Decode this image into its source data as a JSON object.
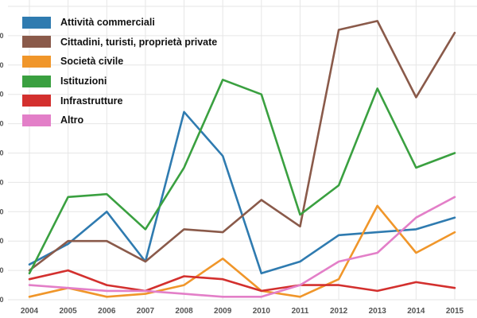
{
  "chart_data": {
    "type": "line",
    "x": [
      2004,
      2005,
      2006,
      2007,
      2008,
      2009,
      2010,
      2011,
      2012,
      2013,
      2014,
      2015
    ],
    "x_tick_labels": [
      "2004",
      "2005",
      "2006",
      "2007",
      "2008",
      "2009",
      "2010",
      "2011",
      "2012",
      "2013",
      "2014",
      "2015"
    ],
    "y_tick_labels": [
      "0",
      "0",
      "0",
      "0",
      "0",
      "0",
      "0",
      "0",
      "0",
      "0"
    ],
    "ylim": [
      0,
      10
    ],
    "grid": true,
    "legend_position": "top-left",
    "series": [
      {
        "name": "Attività commerciali",
        "color": "#2f7bb0",
        "values": [
          1.2,
          1.9,
          3.0,
          1.3,
          6.4,
          4.9,
          0.9,
          1.3,
          2.2,
          2.3,
          2.4,
          2.8
        ]
      },
      {
        "name": "Cittadini, turisti, proprietà private",
        "color": "#8a5a4a",
        "values": [
          1.0,
          2.0,
          2.0,
          1.3,
          2.4,
          2.3,
          3.4,
          2.5,
          9.2,
          9.5,
          6.9,
          9.1
        ]
      },
      {
        "name": "Società civile",
        "color": "#f0962a",
        "values": [
          0.1,
          0.4,
          0.1,
          0.2,
          0.5,
          1.4,
          0.3,
          0.1,
          0.7,
          3.2,
          1.6,
          2.3
        ]
      },
      {
        "name": "Istituzioni",
        "color": "#3aa040",
        "values": [
          0.9,
          3.5,
          3.6,
          2.4,
          4.5,
          7.5,
          7.0,
          2.9,
          3.9,
          7.2,
          4.5,
          5.0
        ]
      },
      {
        "name": "Infrastrutture",
        "color": "#d3302e",
        "values": [
          0.7,
          1.0,
          0.5,
          0.3,
          0.8,
          0.7,
          0.3,
          0.5,
          0.5,
          0.3,
          0.6,
          0.4
        ]
      },
      {
        "name": "Altro",
        "color": "#e37fc8",
        "values": [
          0.5,
          0.4,
          0.3,
          0.3,
          0.2,
          0.1,
          0.1,
          0.5,
          1.3,
          1.6,
          2.8,
          3.5
        ]
      }
    ]
  }
}
